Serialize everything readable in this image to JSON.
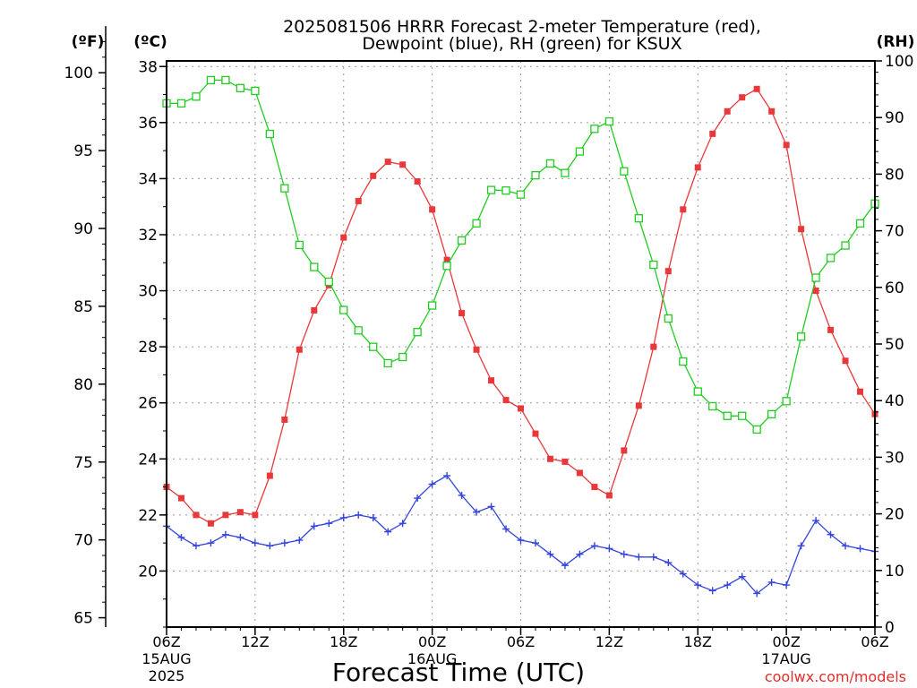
{
  "chart_data": {
    "type": "line",
    "title_line1": "2025081506 HRRR Forecast 2-meter Temperature (red),",
    "title_line2": "Dewpoint (blue), RH (green) for KSUX",
    "xlabel": "Forecast Time (UTC)",
    "credit": "coolwx.com/models",
    "unit_f": "(ºF)",
    "unit_c": "(ºC)",
    "unit_rh": "(RH)",
    "x_ticks": [
      "06Z",
      "12Z",
      "18Z",
      "00Z",
      "06Z",
      "12Z",
      "18Z",
      "00Z",
      "06Z"
    ],
    "date_labels": [
      {
        "hour": 0,
        "line1": "15AUG",
        "line2": "2025"
      },
      {
        "hour": 18,
        "line1": "16AUG",
        "line2": ""
      },
      {
        "hour": 42,
        "line1": "17AUG",
        "line2": ""
      }
    ],
    "axis_c": {
      "min": 18,
      "max": 38.2,
      "ticks": [
        "20",
        "22",
        "24",
        "26",
        "28",
        "30",
        "32",
        "34",
        "36",
        "38"
      ]
    },
    "axis_f": {
      "ticks": [
        "65",
        "70",
        "75",
        "80",
        "85",
        "90",
        "95",
        "100"
      ]
    },
    "axis_rh": {
      "min": 0,
      "max": 100,
      "ticks": [
        "0",
        "10",
        "20",
        "30",
        "40",
        "50",
        "60",
        "70",
        "80",
        "90",
        "100"
      ]
    },
    "x_range_hours": [
      0,
      48
    ],
    "grid": true,
    "series": [
      {
        "name": "Temperature",
        "unit": "C",
        "color": "#e8383a",
        "marker": "filled-square",
        "values": [
          23.0,
          22.6,
          22.0,
          21.7,
          22.0,
          22.1,
          22.0,
          23.4,
          25.4,
          27.9,
          29.3,
          30.2,
          31.9,
          33.2,
          34.1,
          34.6,
          34.5,
          33.9,
          32.9,
          31.1,
          29.2,
          27.9,
          26.8,
          26.1,
          25.8,
          24.9,
          24.0,
          23.9,
          23.5,
          23.0,
          22.7,
          24.3,
          25.9,
          28.0,
          30.7,
          32.9,
          34.4,
          35.6,
          36.4,
          36.9,
          37.2,
          36.4,
          35.2,
          32.2,
          30.0,
          28.6,
          27.5,
          26.4,
          25.6
        ]
      },
      {
        "name": "Dewpoint",
        "unit": "C",
        "color": "#3344dd",
        "marker": "plus",
        "values": [
          21.6,
          21.2,
          20.9,
          21.0,
          21.3,
          21.2,
          21.0,
          20.9,
          21.0,
          21.1,
          21.6,
          21.7,
          21.9,
          22.0,
          21.9,
          21.4,
          21.7,
          22.6,
          23.1,
          23.4,
          22.7,
          22.1,
          22.3,
          21.5,
          21.1,
          21.0,
          20.6,
          20.2,
          20.6,
          20.9,
          20.8,
          20.6,
          20.5,
          20.5,
          20.3,
          19.9,
          19.5,
          19.3,
          19.5,
          19.8,
          19.2,
          19.6,
          19.5,
          20.9,
          21.8,
          21.3,
          20.9,
          20.8,
          20.7
        ]
      },
      {
        "name": "RH",
        "unit": "%",
        "color": "#22cc22",
        "marker": "open-square",
        "values": [
          92.5,
          92.5,
          93.7,
          96.6,
          96.6,
          95.2,
          94.7,
          87.1,
          77.5,
          67.5,
          63.6,
          61.0,
          56.0,
          52.4,
          49.5,
          46.6,
          47.7,
          52.1,
          56.8,
          63.8,
          68.3,
          71.3,
          77.2,
          77.1,
          76.4,
          79.8,
          81.9,
          80.2,
          84.0,
          88.0,
          89.3,
          80.5,
          72.2,
          64.0,
          54.5,
          46.9,
          41.6,
          39.0,
          37.3,
          37.3,
          34.9,
          37.6,
          39.9,
          51.3,
          61.7,
          65.2,
          67.4,
          71.3,
          74.8
        ]
      }
    ]
  }
}
